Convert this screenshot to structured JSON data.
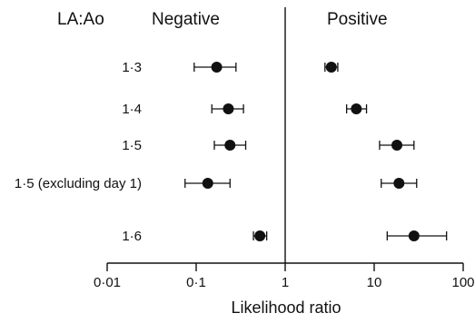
{
  "chart_data": {
    "type": "scatter",
    "variant": "forest-plot",
    "x_scale": "log",
    "xlim": [
      0.01,
      100
    ],
    "xlabel": "Likelihood ratio",
    "xticks": [
      {
        "value": 0.01,
        "label": "0·01"
      },
      {
        "value": 0.1,
        "label": "0·1"
      },
      {
        "value": 1,
        "label": "1"
      },
      {
        "value": 10,
        "label": "10"
      },
      {
        "value": 100,
        "label": "100"
      }
    ],
    "reference_line": 1,
    "row_header": "LA:Ao",
    "panel_labels": {
      "left": "Negative",
      "right": "Positive"
    },
    "rows": [
      {
        "label": "1·3",
        "negative": {
          "estimate": 0.17,
          "low": 0.095,
          "high": 0.28
        },
        "positive": {
          "estimate": 3.3,
          "low": 2.8,
          "high": 3.9
        }
      },
      {
        "label": "1·4",
        "negative": {
          "estimate": 0.23,
          "low": 0.15,
          "high": 0.34
        },
        "positive": {
          "estimate": 6.3,
          "low": 4.9,
          "high": 8.2
        }
      },
      {
        "label": "1·5",
        "negative": {
          "estimate": 0.24,
          "low": 0.16,
          "high": 0.36
        },
        "positive": {
          "estimate": 18,
          "low": 11.5,
          "high": 28
        }
      },
      {
        "label": "1·5 (excluding day 1)",
        "negative": {
          "estimate": 0.135,
          "low": 0.075,
          "high": 0.24
        },
        "positive": {
          "estimate": 19,
          "low": 12,
          "high": 30
        }
      },
      {
        "label": "1·6",
        "negative": {
          "estimate": 0.52,
          "low": 0.44,
          "high": 0.62
        },
        "positive": {
          "estimate": 28,
          "low": 14,
          "high": 65
        }
      }
    ]
  }
}
